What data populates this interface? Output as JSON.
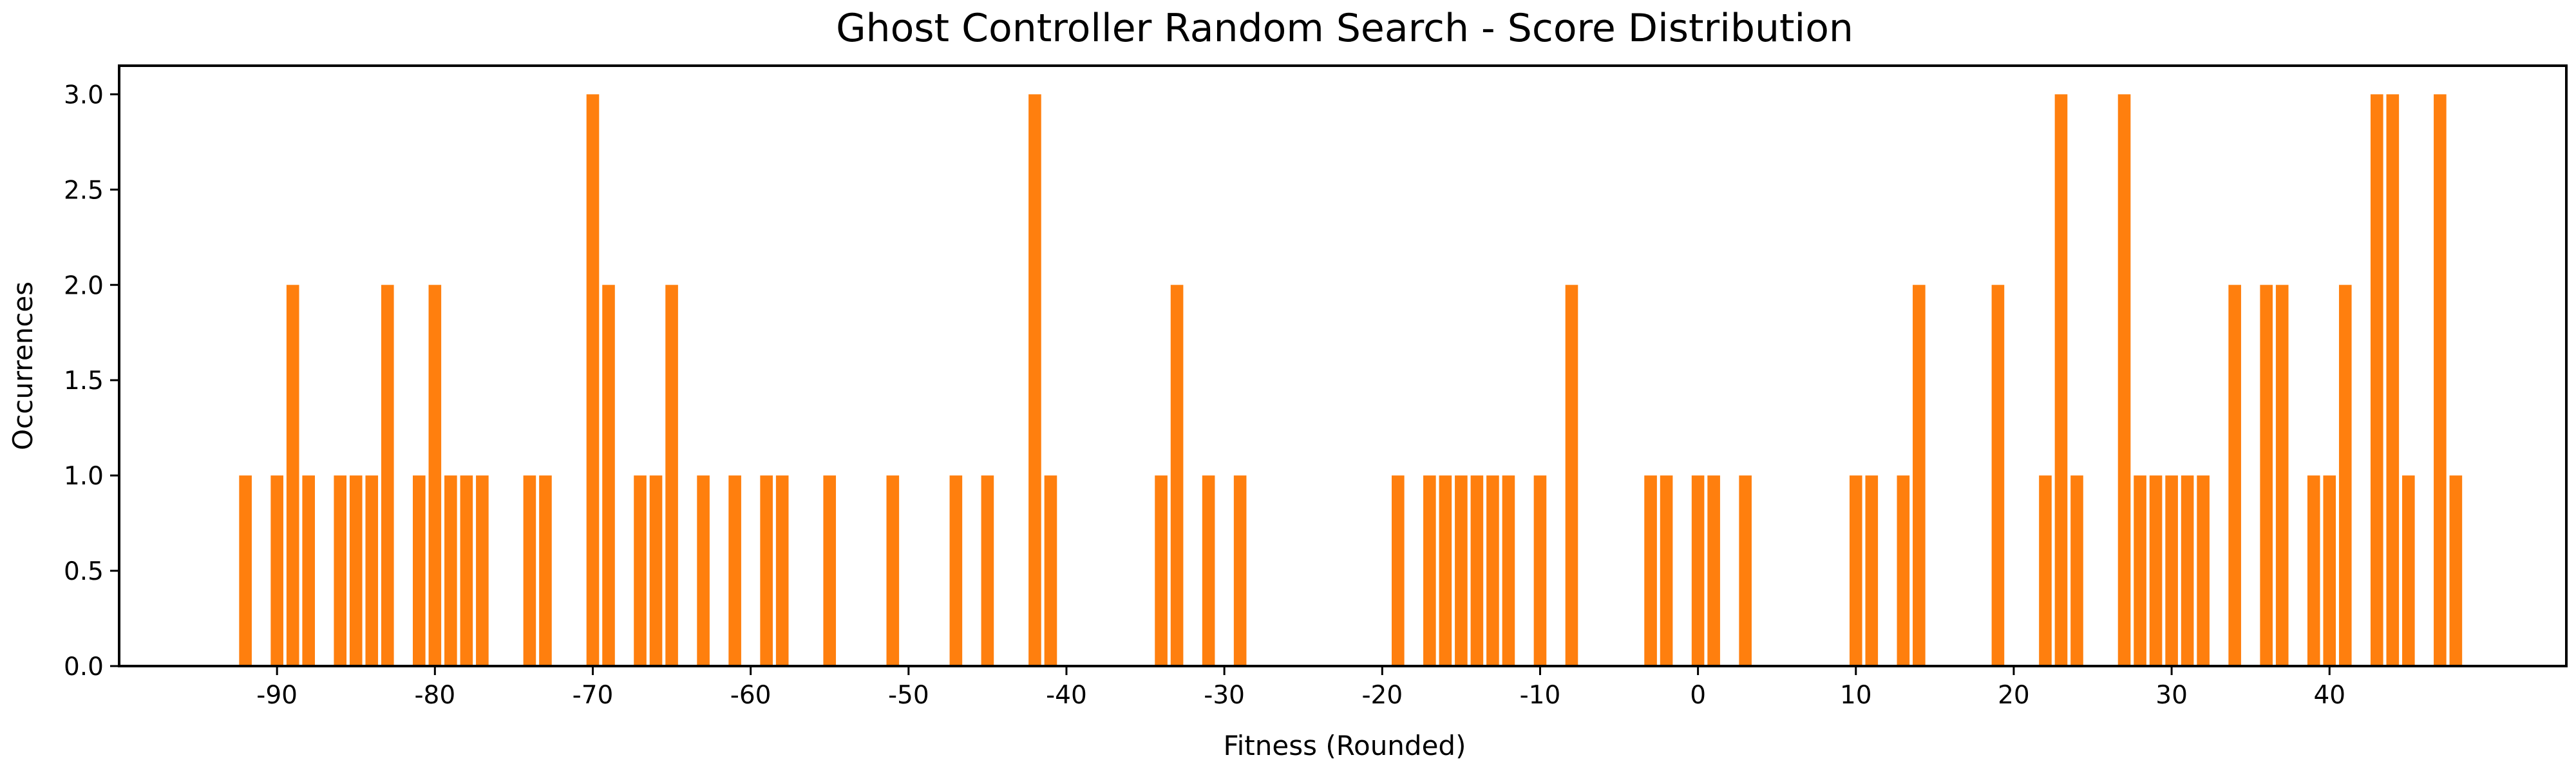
{
  "chart_data": {
    "type": "bar",
    "title": "Ghost Controller Random Search - Score Distribution",
    "xlabel": "Fitness (Rounded)",
    "ylabel": "Occurrences",
    "bar_color": "#ff7f0e",
    "xlim": [
      -100,
      55
    ],
    "ylim": [
      0,
      3.15
    ],
    "xticks": [
      -90,
      -80,
      -70,
      -60,
      -50,
      -40,
      -30,
      -20,
      -10,
      0,
      10,
      20,
      30,
      40
    ],
    "xtick_labels": [
      "-90",
      "-80",
      "-70",
      "-60",
      "-50",
      "-40",
      "-30",
      "-20",
      "-10",
      "0",
      "10",
      "20",
      "30",
      "40"
    ],
    "yticks": [
      0,
      0.5,
      1,
      1.5,
      2,
      2.5,
      3
    ],
    "ytick_labels": [
      "0.0",
      "0.5",
      "1.0",
      "1.5",
      "2.0",
      "2.5",
      "3.0"
    ],
    "grid": false,
    "x": [
      -92,
      -90,
      -89,
      -88,
      -86,
      -85,
      -84,
      -83,
      -81,
      -80,
      -79,
      -78,
      -77,
      -74,
      -73,
      -70,
      -69,
      -67,
      -66,
      -65,
      -63,
      -61,
      -59,
      -58,
      -55,
      -51,
      -47,
      -45,
      -42,
      -41,
      -34,
      -33,
      -31,
      -29,
      -19,
      -17,
      -16,
      -15,
      -14,
      -13,
      -12,
      -10,
      -8,
      -3,
      -2,
      0,
      1,
      3,
      10,
      11,
      13,
      14,
      19,
      22,
      23,
      24,
      27,
      28,
      29,
      30,
      31,
      32,
      34,
      36,
      37,
      39,
      40,
      41,
      43,
      44,
      45,
      47,
      48
    ],
    "values": [
      1,
      1,
      2,
      1,
      1,
      1,
      1,
      2,
      1,
      2,
      1,
      1,
      1,
      1,
      1,
      3,
      2,
      1,
      1,
      2,
      1,
      1,
      1,
      1,
      1,
      1,
      1,
      1,
      3,
      1,
      1,
      2,
      1,
      1,
      1,
      1,
      1,
      1,
      1,
      1,
      1,
      1,
      2,
      1,
      1,
      1,
      1,
      1,
      1,
      1,
      1,
      2,
      2,
      1,
      3,
      1,
      3,
      1,
      1,
      1,
      1,
      1,
      2,
      2,
      2,
      1,
      1,
      2,
      3,
      3,
      1,
      3,
      1
    ]
  }
}
